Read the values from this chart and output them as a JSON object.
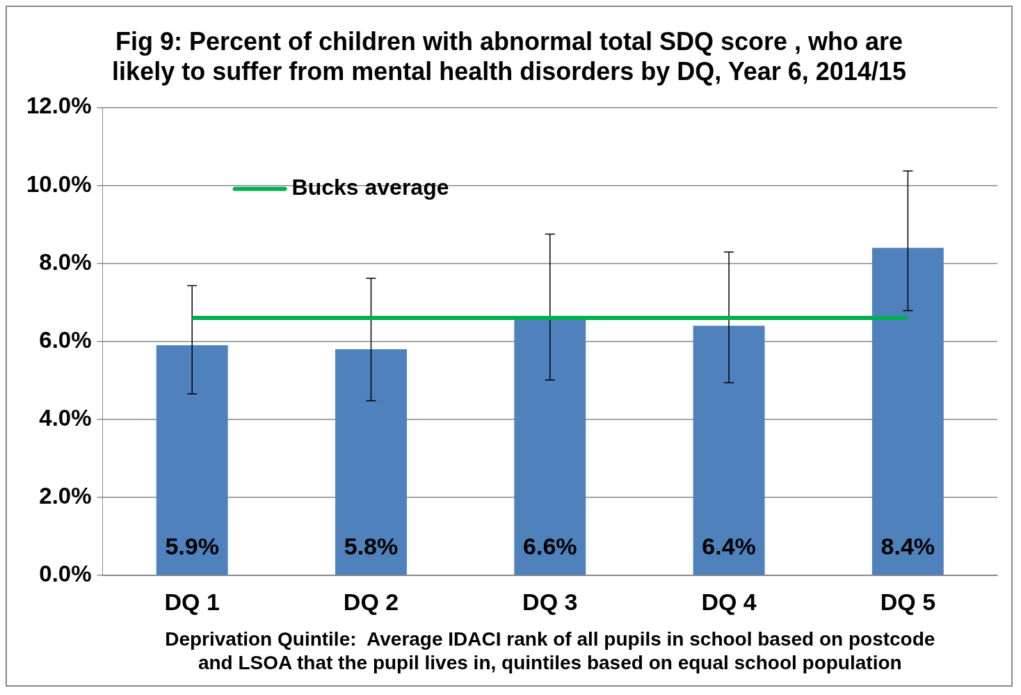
{
  "chart_data": {
    "type": "bar",
    "title": "Fig 9: Percent of children with abnormal total SDQ score , who are likely to suffer from mental health disorders by DQ, Year 6, 2014/15",
    "xlabel": "Deprivation Quintile:  Average IDACI rank of all pupils in school based on postcode and LSOA that the pupil lives in, quintiles based on equal school population",
    "categories": [
      "DQ 1",
      "DQ 2",
      "DQ 3",
      "DQ 4",
      "DQ 5"
    ],
    "series": [
      {
        "color": "#4f81bd",
        "values": [
          5.9,
          5.8,
          6.6,
          6.4,
          8.4
        ],
        "value_labels": [
          "5.9%",
          "5.8%",
          "6.6%",
          "6.4%",
          "8.4%"
        ],
        "errors": [
          [
            4.65,
            7.43
          ],
          [
            4.48,
            7.62
          ],
          [
            5.01,
            8.75
          ],
          [
            4.94,
            8.29
          ],
          [
            6.79,
            10.37
          ]
        ]
      },
      {
        "type": "line",
        "name": "Bucks average",
        "color": "#00b050",
        "values": [
          6.6,
          6.6,
          6.6,
          6.6,
          6.6
        ]
      }
    ],
    "ylim": [
      0,
      12
    ],
    "yticks": [
      {
        "value": 0,
        "label": "0.0%"
      },
      {
        "value": 2,
        "label": "2.0%"
      },
      {
        "value": 4,
        "label": "4.0%"
      },
      {
        "value": 6,
        "label": "6.0%"
      },
      {
        "value": 8,
        "label": "8.0%"
      },
      {
        "value": 10,
        "label": "10.0%"
      },
      {
        "value": 12,
        "label": "12.0%"
      }
    ],
    "grid": "y",
    "legend": "top left",
    "marker": "none"
  }
}
